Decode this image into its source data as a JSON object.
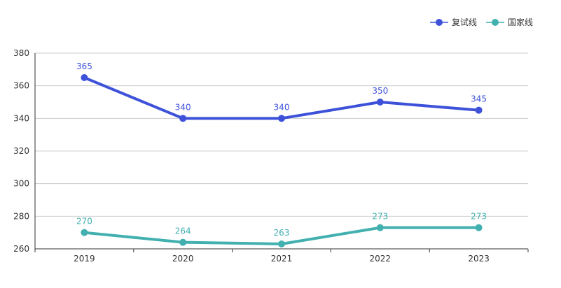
{
  "chart_data": {
    "type": "line",
    "categories": [
      "2019",
      "2020",
      "2021",
      "2022",
      "2023"
    ],
    "series": [
      {
        "name": "复试线",
        "values": [
          365,
          340,
          340,
          350,
          345
        ],
        "color": "#3d52d9"
      },
      {
        "name": "国家线",
        "values": [
          270,
          264,
          263,
          273,
          273
        ],
        "color": "#43b0b0"
      }
    ],
    "ylim": [
      260,
      380
    ],
    "yticks": [
      260,
      280,
      300,
      320,
      340,
      360,
      380
    ],
    "grid": true,
    "legend": "top-right",
    "axis_color": "#333333",
    "grid_color": "#cccccc",
    "label_color": "#555555"
  }
}
